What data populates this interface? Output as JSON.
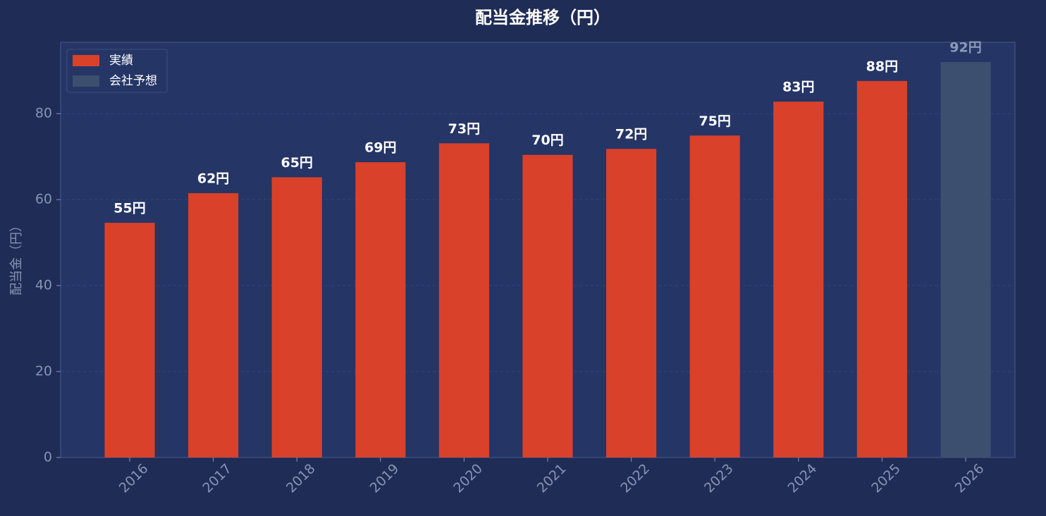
{
  "chart_data": {
    "type": "bar",
    "title": "配当金推移（円）",
    "y_label": "配当金（円）",
    "categories": [
      "2016",
      "2017",
      "2018",
      "2019",
      "2020",
      "2021",
      "2022",
      "2023",
      "2024",
      "2025",
      "2026"
    ],
    "series": [
      {
        "name": "実績",
        "color": "#d9412b",
        "values": [
          54.6,
          61.5,
          65.2,
          68.7,
          73.1,
          70.4,
          71.8,
          74.9,
          82.8,
          87.6,
          null
        ],
        "value_labels": [
          "55円",
          "62円",
          "65円",
          "69円",
          "73円",
          "70円",
          "72円",
          "75円",
          "83円",
          "88円",
          null
        ]
      },
      {
        "name": "会社予想",
        "color": "#3d4f6e",
        "values": [
          null,
          null,
          null,
          null,
          null,
          null,
          null,
          null,
          null,
          null,
          92.0
        ],
        "value_labels": [
          null,
          null,
          null,
          null,
          null,
          null,
          null,
          null,
          null,
          null,
          "92円"
        ]
      }
    ],
    "ylim": [
      0,
      96.6
    ],
    "yticks": [
      0,
      20,
      40,
      60,
      80
    ],
    "grid": true,
    "legend": "upper left"
  }
}
